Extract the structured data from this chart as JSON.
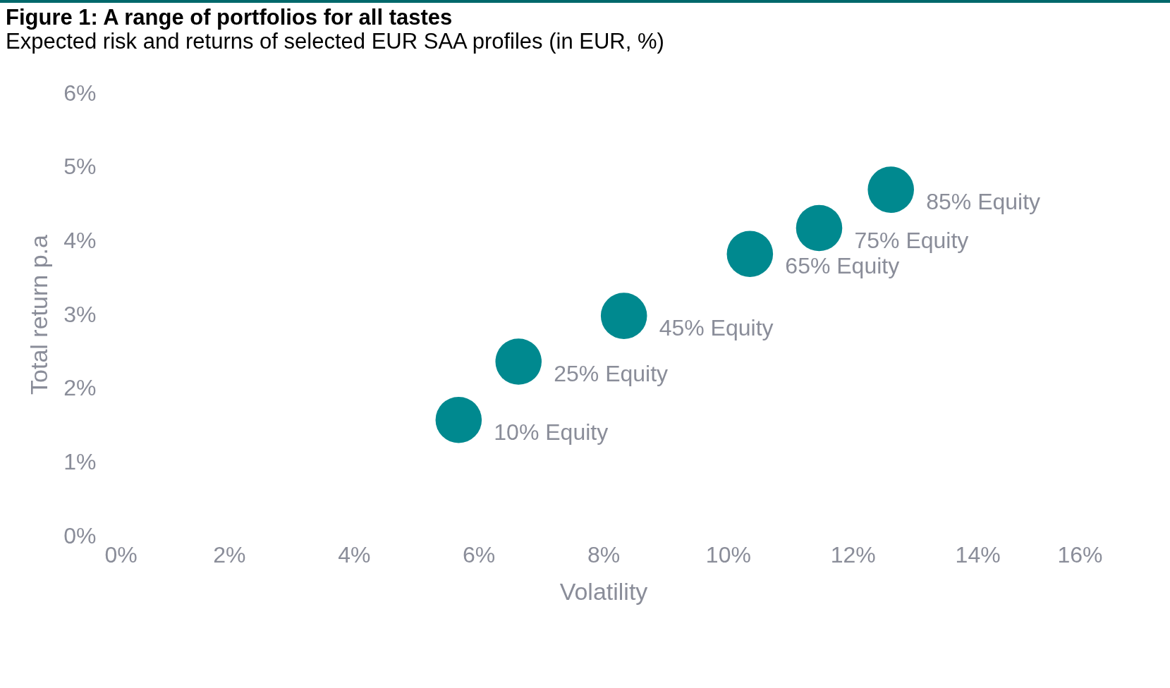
{
  "chart_data": {
    "type": "scatter",
    "title": "Figure 1: A range of portfolios for all tastes",
    "subtitle": "Expected risk and returns of selected EUR SAA profiles (in EUR, %)",
    "xlabel": "Volatility",
    "ylabel": "Total return p.a",
    "x": [
      5.68,
      6.64,
      8.33,
      10.35,
      11.46,
      12.61
    ],
    "series": [
      {
        "color": "#00898f",
        "values": [
          1.57,
          2.36,
          2.98,
          3.82,
          4.17,
          4.69
        ]
      }
    ],
    "marker": "circle",
    "grid": false,
    "xlim": [
      0,
      16
    ],
    "xticks": [
      {
        "value": 0,
        "label": "0%"
      },
      {
        "value": 2,
        "label": "2%"
      },
      {
        "value": 4,
        "label": "4%"
      },
      {
        "value": 6,
        "label": "6%"
      },
      {
        "value": 8,
        "label": "8%"
      },
      {
        "value": 10,
        "label": "10%"
      },
      {
        "value": 12,
        "label": "12%"
      },
      {
        "value": 14,
        "label": "14%"
      },
      {
        "value": 16,
        "label": "16%"
      }
    ],
    "ylim": [
      0,
      6
    ],
    "yticks": [
      {
        "value": 0,
        "label": "0%"
      },
      {
        "value": 1,
        "label": "1%"
      },
      {
        "value": 2,
        "label": "2%"
      },
      {
        "value": 3,
        "label": "3%"
      },
      {
        "value": 4,
        "label": "4%"
      },
      {
        "value": 5,
        "label": "5%"
      },
      {
        "value": 6,
        "label": "6%"
      }
    ],
    "annotations": [
      {
        "text": "10% Equity",
        "x": 5.68,
        "y": 1.57
      },
      {
        "text": "25% Equity",
        "x": 6.64,
        "y": 2.36
      },
      {
        "text": "45% Equity",
        "x": 8.33,
        "y": 2.98
      },
      {
        "text": "65% Equity",
        "x": 10.35,
        "y": 3.82
      },
      {
        "text": "75% Equity",
        "x": 11.46,
        "y": 4.17
      },
      {
        "text": "85% Equity",
        "x": 12.61,
        "y": 4.69
      }
    ]
  }
}
